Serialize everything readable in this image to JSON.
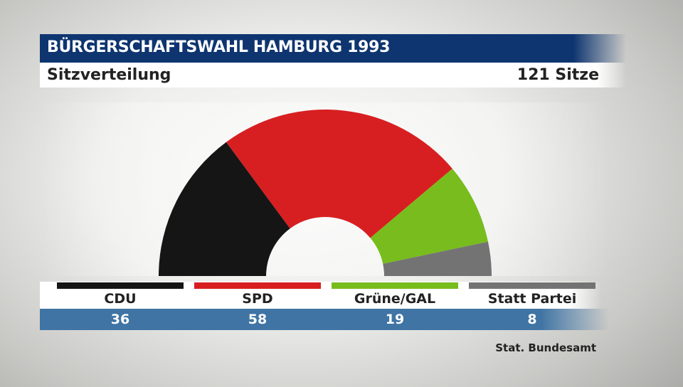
{
  "header": {
    "title": "BÜRGERSCHAFTSWAHL HAMBURG 1993",
    "subtitle": "Sitzverteilung",
    "total_seats": "121 Sitze"
  },
  "source": "Stat. Bundesamt",
  "colors": {
    "title_bar": "#0e3570",
    "values_bar": "#3f74a4"
  },
  "chart_data": {
    "type": "pie",
    "subtype": "semicircle-parliament",
    "title": "BÜRGERSCHAFTSWAHL HAMBURG 1993",
    "subtitle": "Sitzverteilung",
    "total": 121,
    "categories": [
      "CDU",
      "SPD",
      "Grüne/GAL",
      "Statt Partei"
    ],
    "values": [
      36,
      58,
      19,
      8
    ],
    "colors": [
      "#151515",
      "#d71f21",
      "#78bc1d",
      "#737373"
    ]
  }
}
